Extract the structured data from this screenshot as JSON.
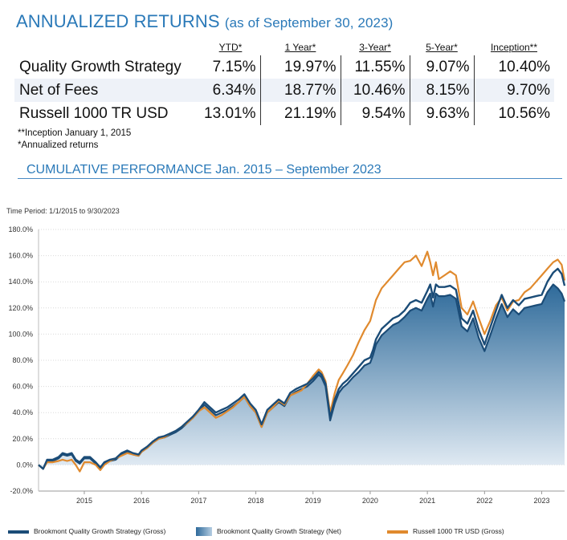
{
  "header": {
    "title_main": "ANNUALIZED RETURNS",
    "title_sub": "(as of September 30, 2023)"
  },
  "returns_table": {
    "columns": [
      "YTD*",
      "1 Year*",
      "3-Year*",
      "5-Year*",
      "Inception**"
    ],
    "rows": [
      {
        "label": "Quality Growth Strategy",
        "values": [
          "7.15%",
          "19.97%",
          "11.55%",
          "9.07%",
          "10.40%"
        ]
      },
      {
        "label": "Net of Fees",
        "values": [
          "6.34%",
          "18.77%",
          "10.46%",
          "8.15%",
          "9.70%"
        ]
      },
      {
        "label": "Russell 1000 TR USD",
        "values": [
          "13.01%",
          "21.19%",
          "9.54%",
          "9.63%",
          "10.56%"
        ]
      }
    ]
  },
  "footnotes": [
    "**Inception January 1, 2015",
    "*Annualized returns"
  ],
  "chart_title": "CUMULATIVE PERFORMANCE Jan. 2015 – September 2023",
  "time_period": "Time Period: 1/1/2015 to 9/30/2023",
  "colors": {
    "title": "#2a79b8",
    "gross": "#1b4c77",
    "net_top": "#2e6a9a",
    "net_bottom": "#e3ecf4",
    "russell": "#e08a2e",
    "grid": "#d9d9d9"
  },
  "chart_data": {
    "type": "line",
    "title": "CUMULATIVE PERFORMANCE Jan. 2015 – September 2023",
    "xlabel": "",
    "ylabel": "",
    "ylim": [
      -20,
      180
    ],
    "xlim": [
      2014.2,
      2023.4
    ],
    "yticks": [
      -20,
      0,
      20,
      40,
      60,
      80,
      100,
      120,
      140,
      160,
      180
    ],
    "ytick_labels": [
      "-20.0%",
      "0.0%",
      "20.0%",
      "40.0%",
      "60.0%",
      "80.0%",
      "100.0%",
      "120.0%",
      "140.0%",
      "160.0%",
      "180.0%"
    ],
    "xticks": [
      2015,
      2016,
      2017,
      2018,
      2019,
      2020,
      2021,
      2022,
      2023
    ],
    "xtick_labels": [
      "2015",
      "2016",
      "2017",
      "2018",
      "2019",
      "2020",
      "2021",
      "2022",
      "2023"
    ],
    "x": [
      2014.2,
      2014.28,
      2014.35,
      2014.45,
      2014.55,
      2014.62,
      2014.7,
      2014.78,
      2014.85,
      2014.92,
      2015.0,
      2015.1,
      2015.2,
      2015.28,
      2015.35,
      2015.45,
      2015.55,
      2015.65,
      2015.75,
      2015.85,
      2015.95,
      2016.0,
      2016.1,
      2016.2,
      2016.3,
      2016.4,
      2016.5,
      2016.6,
      2016.7,
      2016.8,
      2016.9,
      2017.0,
      2017.1,
      2017.2,
      2017.3,
      2017.4,
      2017.5,
      2017.6,
      2017.7,
      2017.8,
      2017.9,
      2018.0,
      2018.1,
      2018.2,
      2018.3,
      2018.4,
      2018.5,
      2018.6,
      2018.7,
      2018.8,
      2018.9,
      2019.0,
      2019.1,
      2019.15,
      2019.22,
      2019.3,
      2019.38,
      2019.45,
      2019.52,
      2019.6,
      2019.7,
      2019.8,
      2019.9,
      2020.0,
      2020.05,
      2020.1,
      2020.2,
      2020.3,
      2020.4,
      2020.5,
      2020.6,
      2020.7,
      2020.8,
      2020.9,
      2021.0,
      2021.05,
      2021.1,
      2021.15,
      2021.2,
      2021.3,
      2021.4,
      2021.5,
      2021.6,
      2021.7,
      2021.8,
      2021.9,
      2022.0,
      2022.1,
      2022.2,
      2022.3,
      2022.4,
      2022.5,
      2022.6,
      2022.7,
      2022.8,
      2022.9,
      2023.0,
      2023.1,
      2023.2,
      2023.28,
      2023.35,
      2023.4
    ],
    "series": [
      {
        "name": "Brookmont Quality Growth Strategy (Gross)",
        "values": [
          0,
          -3,
          4,
          4,
          6,
          9,
          8,
          9,
          4,
          2,
          6,
          6,
          2,
          -2,
          2,
          4,
          5,
          9,
          11,
          9,
          8,
          11,
          14,
          18,
          21,
          22,
          24,
          26,
          29,
          33,
          37,
          42,
          48,
          44,
          40,
          42,
          44,
          47,
          50,
          54,
          47,
          42,
          31,
          42,
          46,
          50,
          47,
          55,
          58,
          60,
          62,
          66,
          71,
          69,
          62,
          36,
          50,
          58,
          62,
          65,
          70,
          75,
          80,
          82,
          88,
          96,
          104,
          108,
          112,
          114,
          118,
          124,
          126,
          124,
          133,
          138,
          128,
          138,
          136,
          136,
          137,
          134,
          112,
          108,
          118,
          103,
          92,
          105,
          118,
          130,
          120,
          126,
          122,
          127,
          128,
          129,
          130,
          140,
          147,
          150,
          146,
          137
        ]
      },
      {
        "name": "Brookmont Quality Growth Strategy (Net)",
        "values": [
          0,
          -3,
          3,
          3,
          5,
          8,
          7,
          8,
          3,
          1,
          5,
          5,
          1,
          -3,
          1,
          3,
          4,
          8,
          10,
          8,
          7,
          10,
          13,
          17,
          20,
          21,
          23,
          25,
          28,
          32,
          36,
          41,
          46,
          42,
          38,
          40,
          42,
          45,
          48,
          52,
          45,
          40,
          29,
          40,
          44,
          48,
          45,
          53,
          56,
          58,
          60,
          64,
          69,
          67,
          60,
          34,
          47,
          55,
          59,
          62,
          67,
          71,
          76,
          78,
          84,
          92,
          99,
          103,
          107,
          109,
          113,
          118,
          120,
          118,
          127,
          131,
          121,
          131,
          129,
          129,
          130,
          127,
          106,
          102,
          112,
          97,
          87,
          99,
          112,
          123,
          113,
          119,
          115,
          120,
          121,
          122,
          123,
          132,
          138,
          135,
          131,
          125
        ]
      },
      {
        "name": "Russell 1000 TR USD (Gross)",
        "values": [
          0,
          -3,
          2,
          2,
          3,
          4,
          3,
          4,
          0,
          -5,
          2,
          2,
          0,
          -4,
          0,
          3,
          5,
          7,
          9,
          8,
          7,
          10,
          13,
          17,
          20,
          21,
          24,
          26,
          29,
          32,
          36,
          41,
          44,
          40,
          36,
          38,
          41,
          44,
          48,
          52,
          45,
          40,
          29,
          40,
          44,
          49,
          46,
          53,
          55,
          57,
          62,
          68,
          73,
          71,
          64,
          40,
          55,
          65,
          70,
          76,
          84,
          94,
          103,
          110,
          118,
          126,
          135,
          140,
          145,
          150,
          155,
          156,
          160,
          152,
          163,
          155,
          145,
          155,
          142,
          145,
          148,
          145,
          120,
          115,
          125,
          112,
          100,
          110,
          122,
          128,
          118,
          125,
          126,
          132,
          135,
          140,
          145,
          150,
          155,
          157,
          153,
          141
        ]
      }
    ],
    "legend_position": "bottom"
  }
}
